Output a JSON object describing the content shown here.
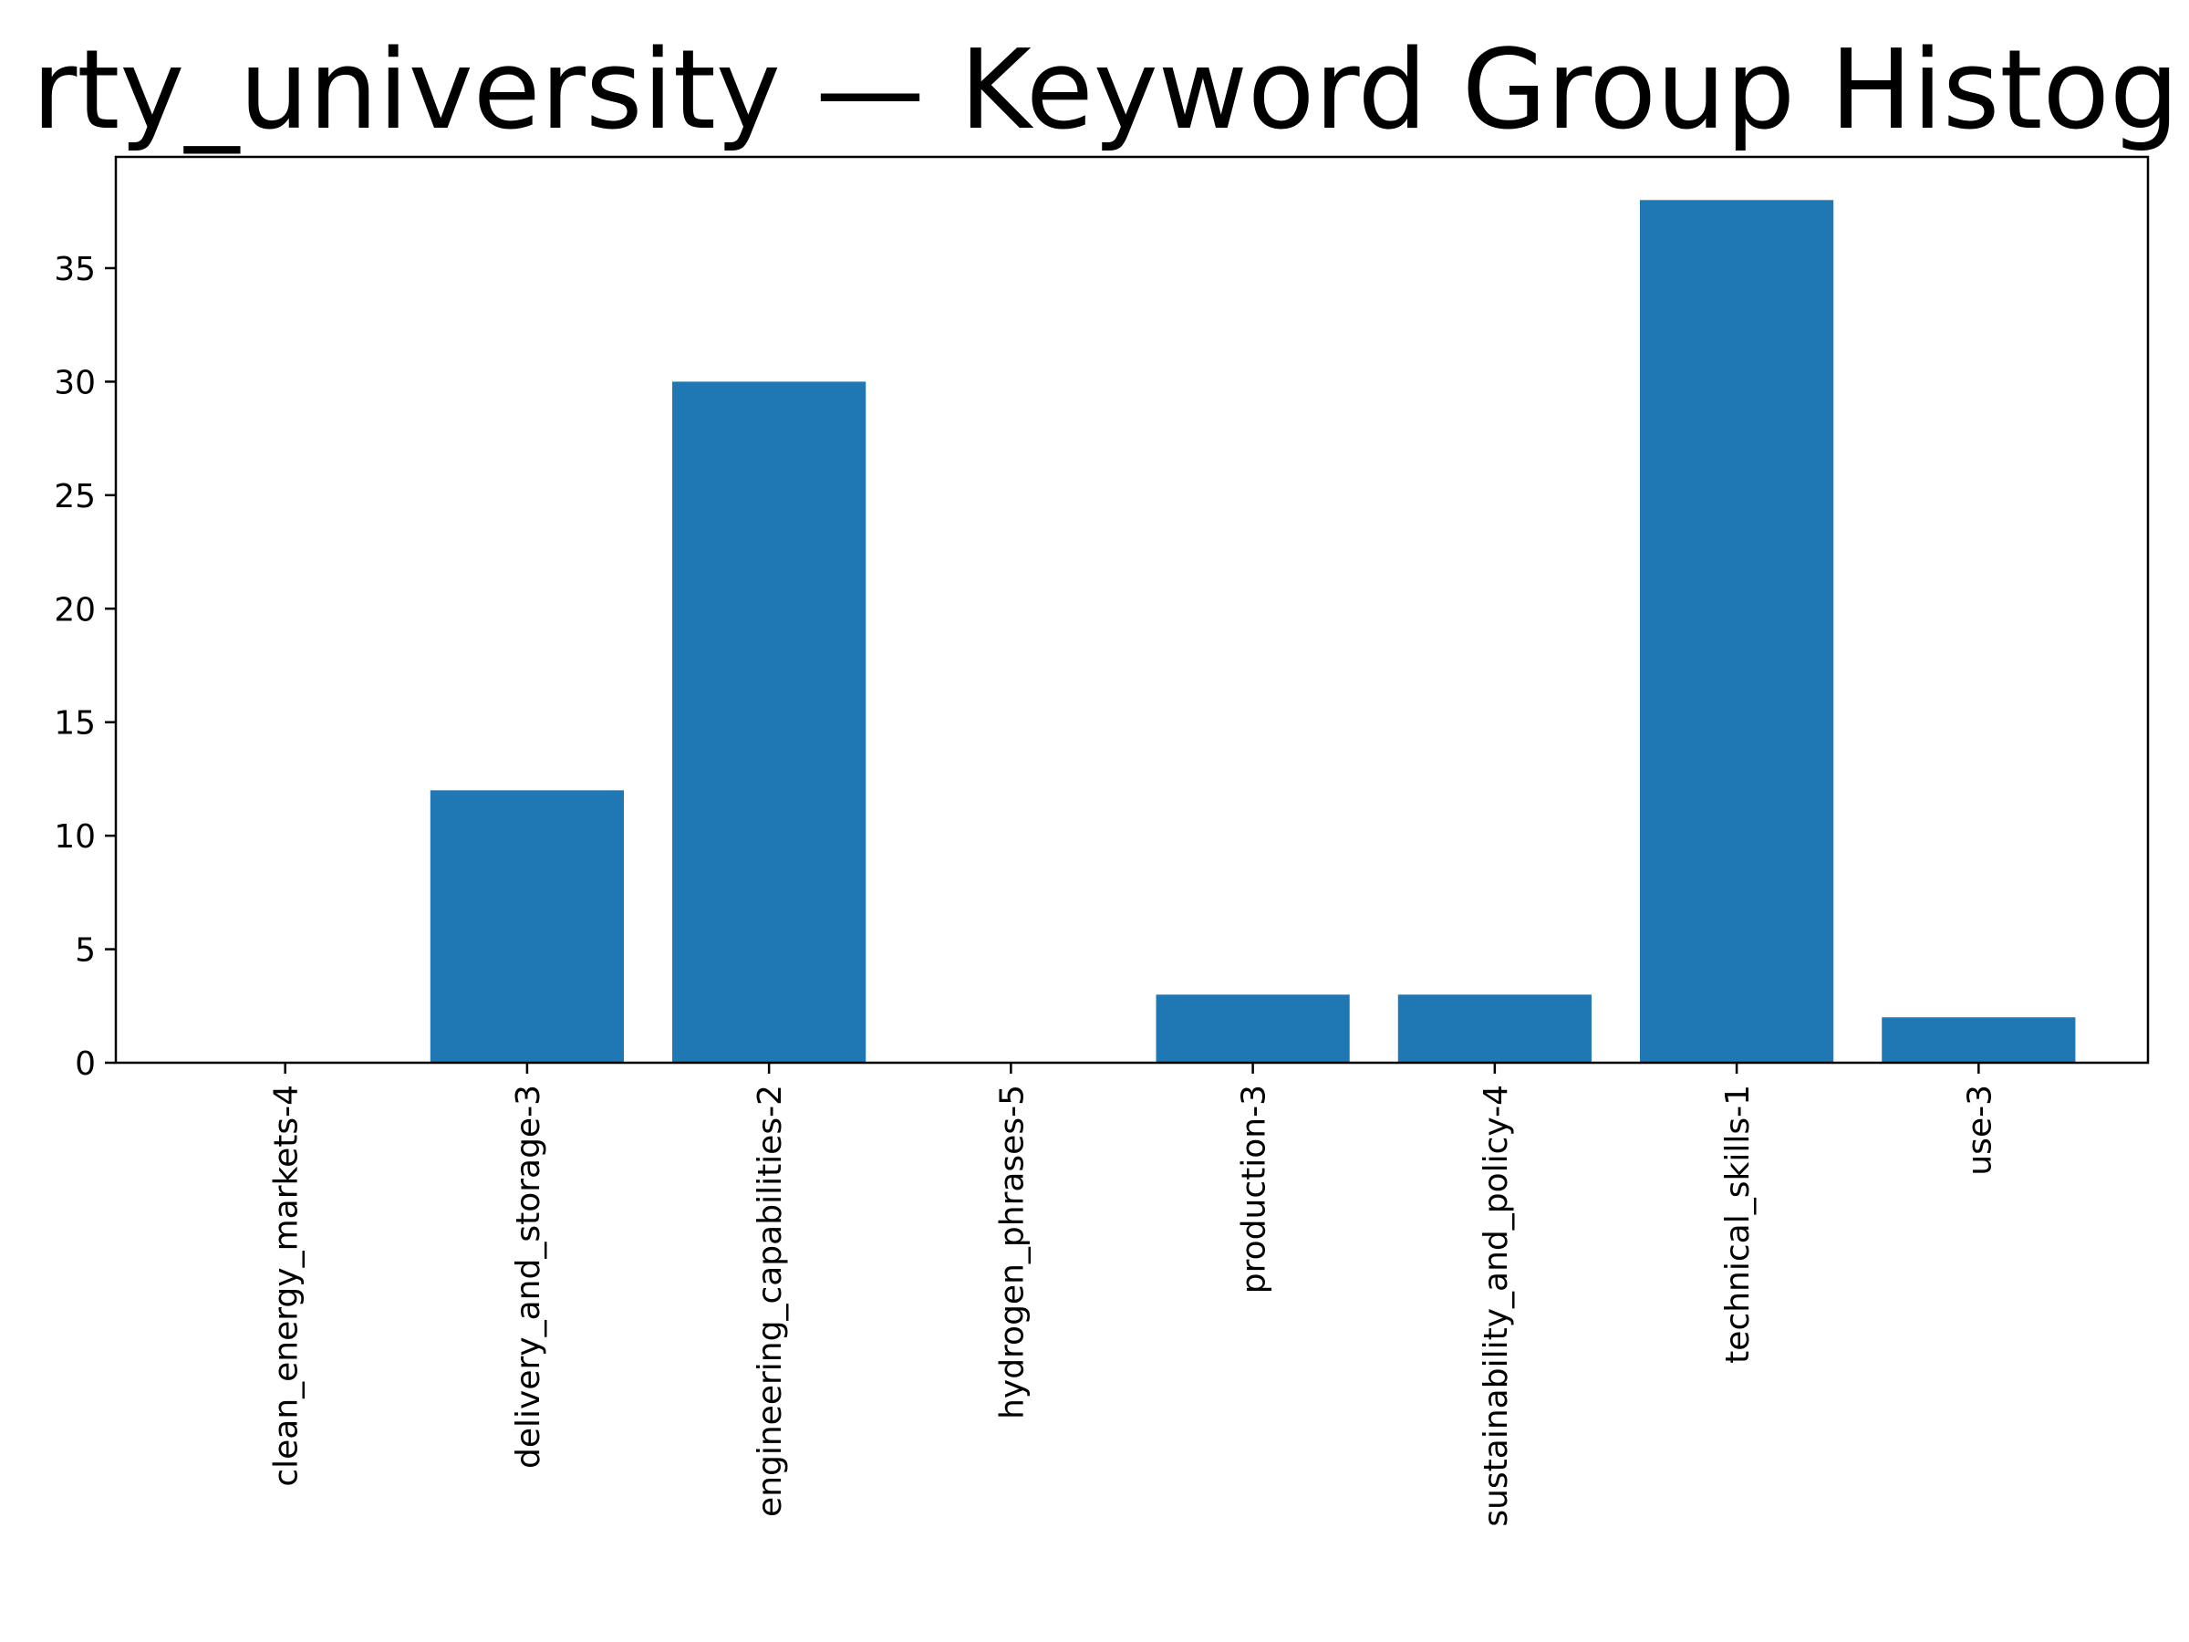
{
  "chart_data": {
    "type": "bar",
    "title": "rty_university — Keyword Group Histog",
    "xlabel": "",
    "ylabel": "",
    "categories": [
      "clean_energy_markets-4",
      "delivery_and_storage-3",
      "engineering_capabilities-2",
      "hydrogen_phrases-5",
      "production-3",
      "sustainability_and_policy-4",
      "technical_skills-1",
      "use-3"
    ],
    "values": [
      0,
      12,
      30,
      0,
      3,
      3,
      38,
      2
    ],
    "ylim": [
      0,
      39.9
    ],
    "yticks": [
      0,
      5,
      10,
      15,
      20,
      25,
      30,
      35
    ],
    "bar_color": "#1f77b4",
    "grid": false,
    "legend": "none"
  }
}
